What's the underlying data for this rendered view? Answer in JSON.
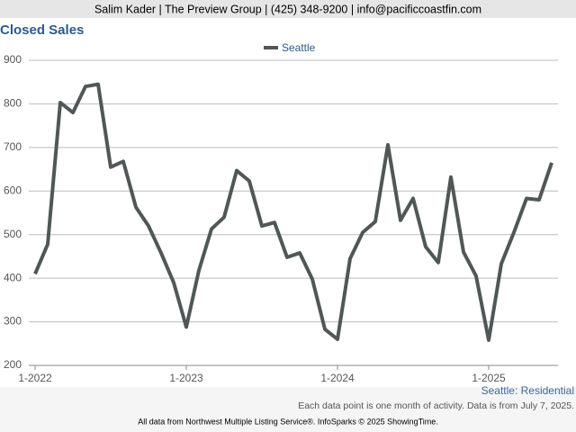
{
  "header": "Salim Kader | The Preview Group | (425) 348-9200 | info@pacificcoastfin.com",
  "chart_data": {
    "type": "line",
    "title": "Closed Sales",
    "categories": [
      "1-2022",
      null,
      null,
      null,
      null,
      null,
      null,
      null,
      null,
      null,
      null,
      null,
      "1-2023",
      null,
      null,
      null,
      null,
      null,
      null,
      null,
      null,
      null,
      null,
      null,
      "1-2024",
      null,
      null,
      null,
      null,
      null,
      null,
      null,
      null,
      null,
      null,
      null,
      "1-2025",
      null,
      null,
      null,
      null,
      null
    ],
    "series": [
      {
        "name": "Seattle",
        "color": "#4f5857",
        "values": [
          410,
          478,
          803,
          780,
          840,
          845,
          655,
          668,
          563,
          520,
          458,
          390,
          288,
          418,
          513,
          540,
          647,
          623,
          520,
          528,
          448,
          458,
          398,
          283,
          260,
          445,
          505,
          530,
          706,
          533,
          583,
          472,
          436,
          632,
          460,
          405,
          258,
          433,
          505,
          583,
          580,
          665
        ]
      }
    ],
    "ylim": [
      200,
      900
    ],
    "yticks": [
      200,
      300,
      400,
      500,
      600,
      700,
      800,
      900
    ],
    "grid": true,
    "legend": "top",
    "subtitle": "Seattle: Residential",
    "note": "Each data point is one month of activity. Data is from July 7, 2025."
  },
  "footer": "All data from Northwest Multiple Listing Service®. InfoSparks © 2025 ShowingTime."
}
